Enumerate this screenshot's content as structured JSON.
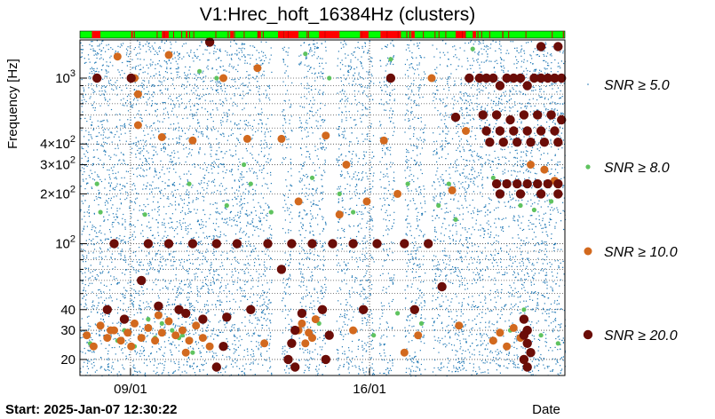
{
  "chart_data": {
    "type": "scatter",
    "title": "V1:Hrec_hoft_16384Hz (clusters)",
    "xlabel": "Date",
    "ylabel": "Frequency [Hz]",
    "start_label": "Start: 2025-Jan-07 12:30:22",
    "x_axis": {
      "unit": "days since start",
      "range": [
        0,
        14.2
      ],
      "ticks": [
        {
          "value": 1.48,
          "label": "09/01"
        },
        {
          "value": 8.48,
          "label": "16/01"
        }
      ]
    },
    "y_axis": {
      "scale": "log",
      "range": [
        16,
        1700
      ],
      "ticks": [
        {
          "value": 20,
          "label": "20"
        },
        {
          "value": 30,
          "label": "30"
        },
        {
          "value": 40,
          "label": "40"
        },
        {
          "value": 100,
          "label": "10^2"
        },
        {
          "value": 200,
          "label": "2×10^2"
        },
        {
          "value": 300,
          "label": "3×10^2"
        },
        {
          "value": 400,
          "label": "4×10^2"
        },
        {
          "value": 1000,
          "label": "10^3"
        }
      ]
    },
    "grid": true,
    "legend_position": "right",
    "series": [
      {
        "name": "SNR ≥ 5.0",
        "color": "#1f77b4",
        "description_density": "dense vertical bands of small points covering 16–1700 Hz"
      },
      {
        "name": "SNR ≥ 8.0",
        "color": "#5fc35f",
        "points": [
          [
            0.3,
            25
          ],
          [
            0.5,
            230
          ],
          [
            0.6,
            155
          ],
          [
            1.1,
            26
          ],
          [
            1.3,
            30
          ],
          [
            1.6,
            24
          ],
          [
            2.0,
            35
          ],
          [
            2.2,
            27
          ],
          [
            2.4,
            33
          ],
          [
            2.7,
            30
          ],
          [
            3.0,
            28
          ],
          [
            3.2,
            230
          ],
          [
            3.5,
            1100
          ],
          [
            3.3,
            22
          ],
          [
            4.0,
            1000
          ],
          [
            4.3,
            170
          ],
          [
            4.8,
            300
          ],
          [
            5.0,
            230
          ],
          [
            5.6,
            155
          ],
          [
            6.2,
            25
          ],
          [
            6.6,
            1400
          ],
          [
            6.8,
            250
          ],
          [
            7.0,
            33
          ],
          [
            7.3,
            1000
          ],
          [
            7.6,
            200
          ],
          [
            8.0,
            155
          ],
          [
            8.6,
            28
          ],
          [
            9.1,
            1300
          ],
          [
            9.6,
            230
          ],
          [
            10.0,
            33
          ],
          [
            10.5,
            170
          ],
          [
            11.0,
            140
          ],
          [
            11.5,
            1500
          ],
          [
            12.1,
            250
          ],
          [
            12.6,
            30
          ],
          [
            13.0,
            40
          ],
          [
            13.3,
            160
          ],
          [
            13.8,
            180
          ],
          [
            14.0,
            25
          ],
          [
            13.5,
            28
          ],
          [
            1.9,
            150
          ],
          [
            2.9,
            27
          ],
          [
            9.3,
            38
          ],
          [
            10.8,
            230
          ],
          [
            12.9,
            170
          ]
        ]
      },
      {
        "name": "SNR ≥ 10.0",
        "color": "#d2691e",
        "points": [
          [
            0.2,
            28
          ],
          [
            0.4,
            24
          ],
          [
            0.6,
            32
          ],
          [
            0.8,
            27
          ],
          [
            1.0,
            30
          ],
          [
            1.2,
            26
          ],
          [
            1.4,
            29
          ],
          [
            1.6,
            33
          ],
          [
            1.8,
            27
          ],
          [
            2.0,
            31
          ],
          [
            2.2,
            26
          ],
          [
            2.4,
            29
          ],
          [
            2.6,
            34
          ],
          [
            2.8,
            28
          ],
          [
            3.0,
            30
          ],
          [
            3.2,
            26
          ],
          [
            3.4,
            32
          ],
          [
            3.6,
            27
          ],
          [
            0.9,
            30
          ],
          [
            1.5,
            24
          ],
          [
            2.3,
            37
          ],
          [
            3.1,
            22
          ],
          [
            1.1,
            1350
          ],
          [
            1.6,
            1000
          ],
          [
            1.7,
            800
          ],
          [
            1.7,
            520
          ],
          [
            2.4,
            440
          ],
          [
            2.6,
            1380
          ],
          [
            4.2,
            1000
          ],
          [
            3.3,
            420
          ],
          [
            4.9,
            430
          ],
          [
            5.2,
            1150
          ],
          [
            5.9,
            430
          ],
          [
            6.4,
            180
          ],
          [
            6.4,
            30
          ],
          [
            6.5,
            33
          ],
          [
            6.6,
            25
          ],
          [
            6.7,
            29
          ],
          [
            6.8,
            27
          ],
          [
            6.9,
            35
          ],
          [
            7.2,
            450
          ],
          [
            7.6,
            150
          ],
          [
            7.8,
            300
          ],
          [
            8.4,
            180
          ],
          [
            8.9,
            420
          ],
          [
            9.3,
            200
          ],
          [
            9.9,
            28
          ],
          [
            10.3,
            1000
          ],
          [
            10.9,
            210
          ],
          [
            11.3,
            480
          ],
          [
            12.1,
            26
          ],
          [
            12.3,
            29
          ],
          [
            12.5,
            24
          ],
          [
            12.7,
            31
          ],
          [
            12.9,
            27
          ],
          [
            13.2,
            300
          ],
          [
            13.6,
            280
          ],
          [
            13.9,
            240
          ],
          [
            3.8,
            24
          ],
          [
            5.4,
            25
          ],
          [
            8.0,
            30
          ],
          [
            9.5,
            22
          ],
          [
            11.1,
            32
          ]
        ]
      },
      {
        "name": "SNR ≥ 20.0",
        "color": "#6b0d08",
        "points": [
          [
            0.5,
            1000
          ],
          [
            0.8,
            40
          ],
          [
            1.0,
            100
          ],
          [
            1.3,
            35
          ],
          [
            1.5,
            1000
          ],
          [
            1.8,
            60
          ],
          [
            2.0,
            100
          ],
          [
            2.3,
            42
          ],
          [
            2.6,
            100
          ],
          [
            2.9,
            40
          ],
          [
            3.1,
            38
          ],
          [
            3.3,
            100
          ],
          [
            3.6,
            35
          ],
          [
            3.8,
            1650
          ],
          [
            4.0,
            100
          ],
          [
            4.3,
            36
          ],
          [
            4.6,
            100
          ],
          [
            5.0,
            40
          ],
          [
            5.5,
            100
          ],
          [
            5.9,
            70
          ],
          [
            6.2,
            100
          ],
          [
            6.5,
            38
          ],
          [
            6.8,
            100
          ],
          [
            7.1,
            40
          ],
          [
            7.4,
            100
          ],
          [
            8.0,
            100
          ],
          [
            8.3,
            40
          ],
          [
            8.7,
            100
          ],
          [
            9.1,
            1000
          ],
          [
            9.5,
            100
          ],
          [
            9.8,
            40
          ],
          [
            10.2,
            100
          ],
          [
            10.6,
            55
          ],
          [
            11.0,
            580
          ],
          [
            11.4,
            1000
          ],
          [
            11.7,
            1000
          ],
          [
            11.9,
            1000
          ],
          [
            12.1,
            1000
          ],
          [
            12.3,
            900
          ],
          [
            12.5,
            1000
          ],
          [
            12.7,
            1000
          ],
          [
            12.9,
            1000
          ],
          [
            13.1,
            900
          ],
          [
            13.3,
            1000
          ],
          [
            13.5,
            1000
          ],
          [
            13.7,
            1000
          ],
          [
            13.9,
            1000
          ],
          [
            14.1,
            1000
          ],
          [
            11.8,
            600
          ],
          [
            12.2,
            600
          ],
          [
            12.6,
            560
          ],
          [
            13.0,
            600
          ],
          [
            13.4,
            600
          ],
          [
            13.8,
            600
          ],
          [
            14.1,
            560
          ],
          [
            11.9,
            480
          ],
          [
            12.3,
            480
          ],
          [
            12.7,
            480
          ],
          [
            13.1,
            480
          ],
          [
            13.5,
            480
          ],
          [
            13.9,
            480
          ],
          [
            12.0,
            410
          ],
          [
            12.4,
            410
          ],
          [
            12.8,
            410
          ],
          [
            13.2,
            410
          ],
          [
            13.6,
            410
          ],
          [
            14.0,
            410
          ],
          [
            12.2,
            230
          ],
          [
            12.5,
            230
          ],
          [
            12.8,
            230
          ],
          [
            13.1,
            230
          ],
          [
            13.4,
            230
          ],
          [
            13.7,
            230
          ],
          [
            14.0,
            230
          ],
          [
            12.3,
            200
          ],
          [
            12.9,
            200
          ],
          [
            13.5,
            200
          ],
          [
            14.0,
            200
          ],
          [
            13.0,
            20
          ],
          [
            13.1,
            25
          ],
          [
            13.1,
            30
          ],
          [
            13.0,
            35
          ],
          [
            13.2,
            22
          ],
          [
            13.1,
            18
          ],
          [
            13.0,
            28
          ],
          [
            14.0,
            1550
          ],
          [
            13.5,
            1550
          ],
          [
            6.1,
            20
          ],
          [
            6.2,
            25
          ],
          [
            6.3,
            18
          ],
          [
            6.3,
            30
          ],
          [
            7.2,
            20
          ],
          [
            7.3,
            28
          ],
          [
            4.0,
            18
          ],
          [
            4.2,
            24
          ]
        ]
      }
    ]
  }
}
